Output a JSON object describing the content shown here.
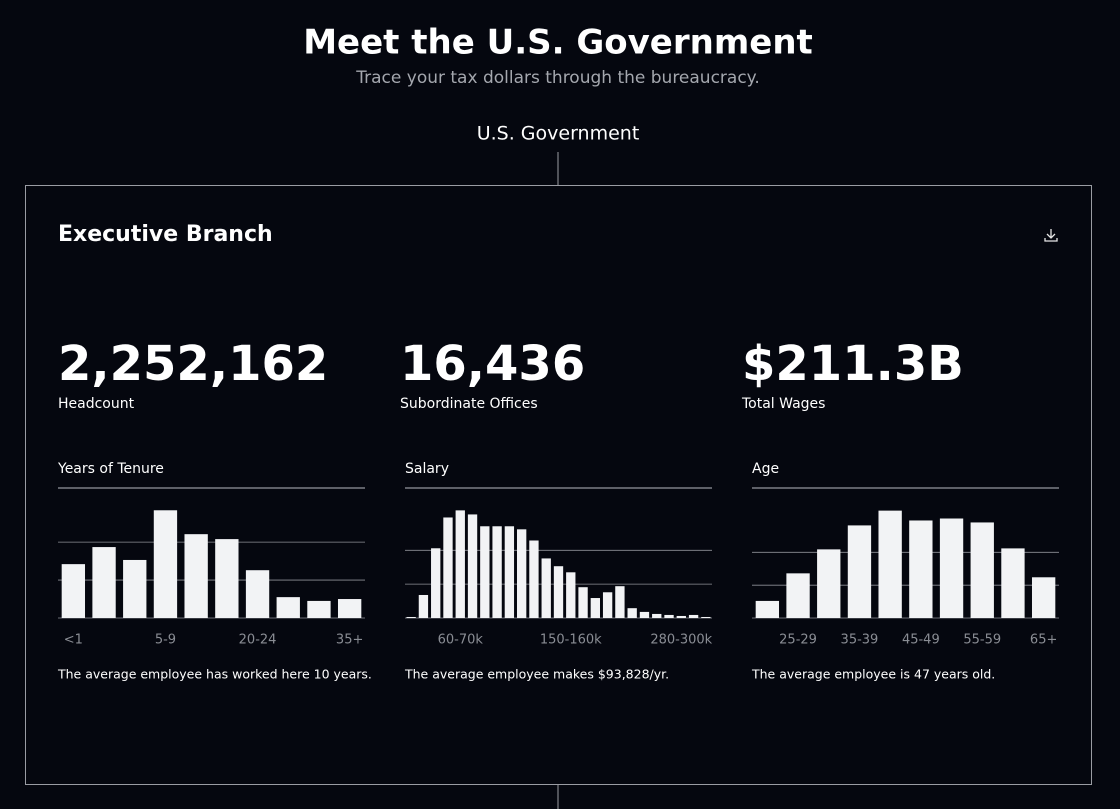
{
  "header": {
    "title": "Meet the U.S. Government",
    "subtitle": "Trace your tax dollars through the bureaucracy."
  },
  "root": "U.S. Government",
  "card": {
    "title": "Executive Branch",
    "stats": [
      {
        "value": "2,252,162",
        "label": "Headcount"
      },
      {
        "value": "16,436",
        "label": "Subordinate Offices"
      },
      {
        "value": "$211.3B",
        "label": "Total Wages"
      }
    ]
  },
  "chart_data": [
    {
      "type": "bar",
      "title": "Years of Tenure",
      "color": "#f2f3f5",
      "grid": true,
      "categories": [
        "<1",
        null,
        null,
        "5-9",
        null,
        null,
        "20-24",
        null,
        null,
        "35+"
      ],
      "values": [
        142,
        187,
        153,
        284,
        221,
        208,
        126,
        55,
        45,
        50
      ],
      "ylim": [
        0,
        290
      ],
      "yticks": [
        0,
        100,
        200
      ],
      "caption": "The average employee has worked here 10 years."
    },
    {
      "type": "bar",
      "title": "Salary",
      "color": "#f2f3f5",
      "grid": true,
      "categories": [
        null,
        null,
        null,
        null,
        "60-70k",
        null,
        null,
        null,
        null,
        null,
        null,
        null,
        null,
        "150-160k",
        null,
        null,
        null,
        null,
        null,
        null,
        null,
        null,
        "280-300k",
        null,
        null
      ],
      "values": [
        3,
        68,
        206,
        297,
        318,
        306,
        271,
        271,
        271,
        262,
        229,
        176,
        153,
        135,
        91,
        59,
        76,
        94,
        29,
        18,
        12,
        9,
        6,
        9,
        3
      ],
      "ylim": [
        0,
        325
      ],
      "yticks": [
        0,
        100,
        200
      ],
      "caption": "The average employee makes $93,828/yr."
    },
    {
      "type": "bar",
      "title": "Age",
      "color": "#f2f3f5",
      "grid": true,
      "categories": [
        null,
        "25-29",
        null,
        "35-39",
        null,
        "45-49",
        null,
        "55-59",
        null,
        "65+"
      ],
      "values": [
        52,
        136,
        209,
        282,
        327,
        297,
        303,
        291,
        212,
        124
      ],
      "ylim": [
        0,
        335
      ],
      "yticks": [
        0,
        100,
        200
      ],
      "caption": "The average employee is 47 years old."
    }
  ]
}
